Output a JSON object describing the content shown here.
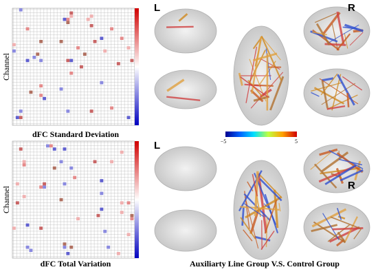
{
  "heatmaps": [
    {
      "y_label": "Channel",
      "title": "dFC  Standard Deviation"
    },
    {
      "y_label": "Channel",
      "title": "dFC  Total Variation"
    }
  ],
  "brain_panels": [
    {
      "left_label": "L",
      "right_label": "R"
    },
    {
      "left_label": "L",
      "right_label": "R"
    }
  ],
  "colorbar": {
    "min_label": "−5",
    "max_label": "5"
  },
  "caption": "Auxiliarty Line Group V.S. Control Group"
}
